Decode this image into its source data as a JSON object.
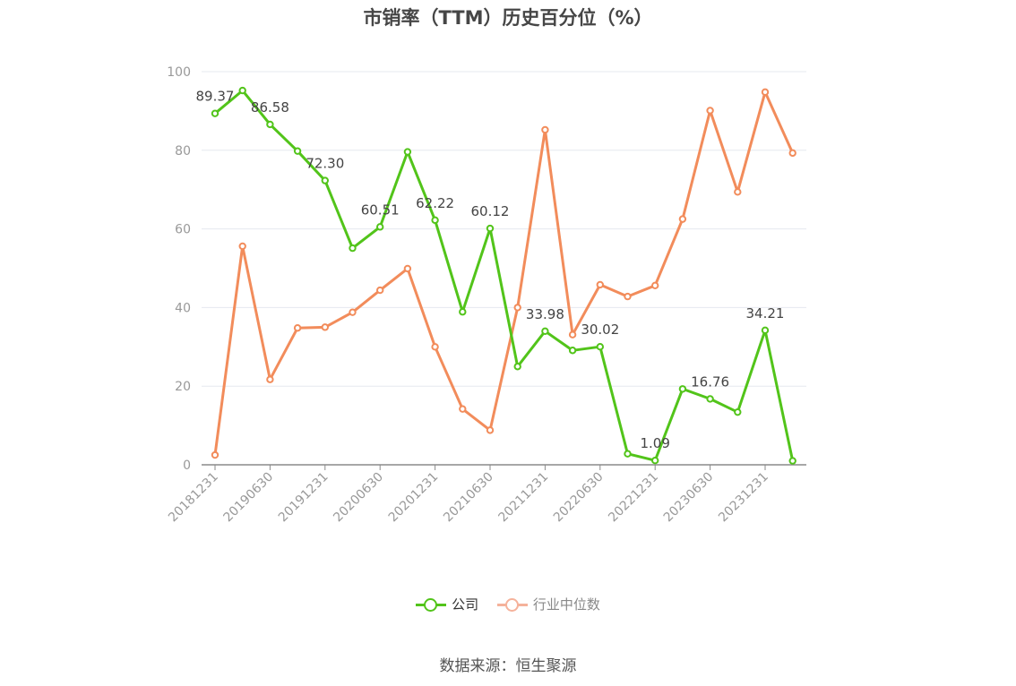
{
  "chart_data": {
    "type": "line",
    "title": "市销率（TTM）历史百分位（%）",
    "ylim": [
      0,
      100
    ],
    "yticks": [
      0,
      20,
      40,
      60,
      80,
      100
    ],
    "x_tick_labels": [
      "20181231",
      "20190630",
      "20191231",
      "20200630",
      "20201231",
      "20210630",
      "20211231",
      "20220630",
      "20221231",
      "20230630",
      "20231231"
    ],
    "x": [
      "20181231",
      "20190331",
      "20190630",
      "20190930",
      "20191231",
      "20200331",
      "20200630",
      "20200930",
      "20201231",
      "20210331",
      "20210630",
      "20210930",
      "20211231",
      "20220331",
      "20220630",
      "20220930",
      "20221231",
      "20230331",
      "20230630",
      "20230930",
      "20231231",
      "20240331"
    ],
    "series": [
      {
        "name": "公司",
        "color": "#52c41a",
        "values": [
          89.37,
          95.2,
          86.58,
          79.8,
          72.3,
          55.1,
          60.51,
          79.6,
          62.22,
          38.9,
          60.12,
          25.0,
          33.98,
          29.1,
          30.02,
          2.8,
          1.09,
          19.3,
          16.76,
          13.4,
          34.21,
          1.0
        ],
        "labels": [
          [
            "0",
            "89.37"
          ],
          [
            "2",
            "86.58"
          ],
          [
            "4",
            "72.30"
          ],
          [
            "6",
            "60.51"
          ],
          [
            "8",
            "62.22"
          ],
          [
            "10",
            "60.12"
          ],
          [
            "12",
            "33.98"
          ],
          [
            "14",
            "30.02"
          ],
          [
            "16",
            "1.09"
          ],
          [
            "18",
            "16.76"
          ],
          [
            "20",
            "34.21"
          ]
        ]
      },
      {
        "name": "行业中位数",
        "color": "#f28c5b",
        "values": [
          2.5,
          55.6,
          21.7,
          34.8,
          35.0,
          38.8,
          44.4,
          49.9,
          30.0,
          14.2,
          8.8,
          40.0,
          85.2,
          33.1,
          45.8,
          42.8,
          45.6,
          62.5,
          90.1,
          69.4,
          94.8,
          79.3
        ]
      }
    ],
    "grid": true,
    "legend_position": "bottom-center"
  },
  "legend": {
    "company": "公司",
    "industry": "行业中位数",
    "company_color": "#52c41a",
    "industry_color": "#f5b29b"
  },
  "source": "数据来源：恒生聚源"
}
